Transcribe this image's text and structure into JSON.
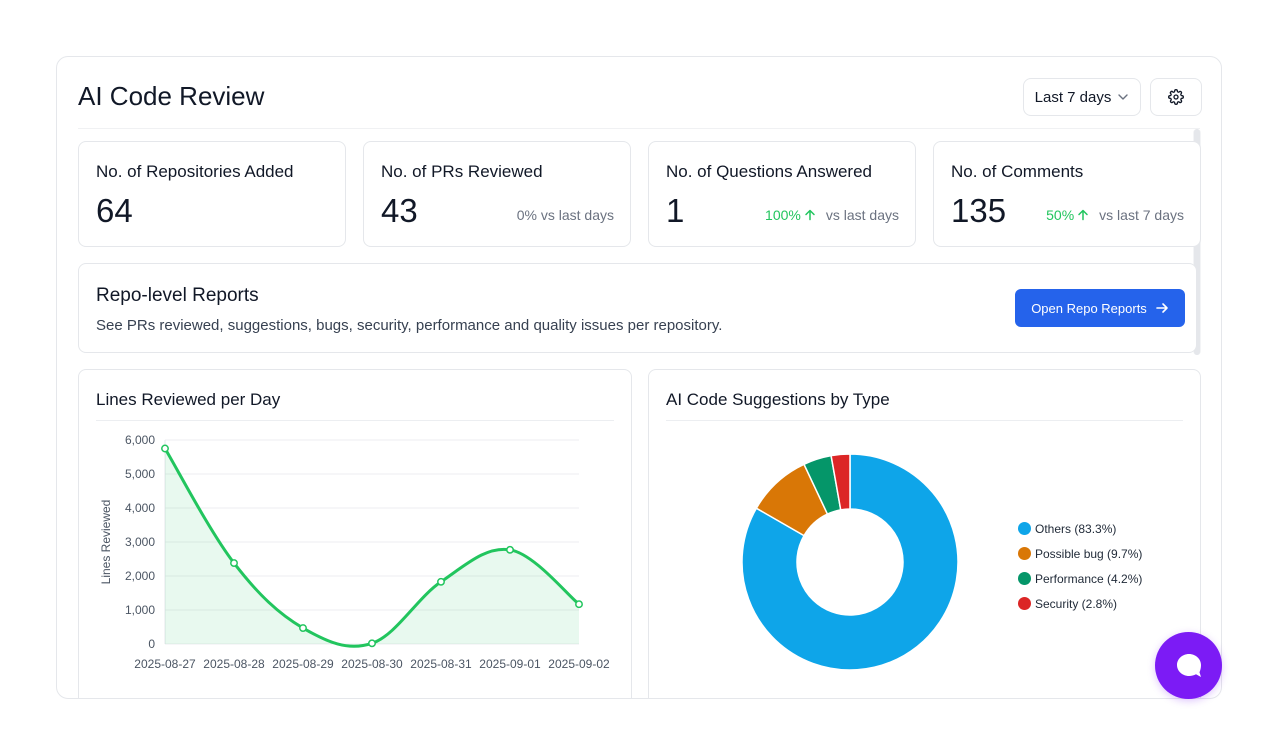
{
  "header": {
    "title": "AI Code Review",
    "range_label": "Last 7 days"
  },
  "stats": [
    {
      "label": "No. of Repositories Added",
      "value": "64",
      "delta_pct": "",
      "delta_text": ""
    },
    {
      "label": "No. of PRs Reviewed",
      "value": "43",
      "delta_pct": "",
      "delta_text": "0% vs last days"
    },
    {
      "label": "No. of Questions Answered",
      "value": "1",
      "delta_pct": "100%",
      "delta_text": "vs last days"
    },
    {
      "label": "No. of Comments",
      "value": "135",
      "delta_pct": "50%",
      "delta_text": "vs last 7 days"
    }
  ],
  "repo_reports": {
    "title": "Repo-level Reports",
    "description": "See PRs reviewed, suggestions, bugs, security, performance and quality issues per repository.",
    "button_label": "Open Repo Reports"
  },
  "colors": {
    "accent": "#2563eb",
    "positive": "#22c55e",
    "line": "#22c55e",
    "chat": "#7c1bf5"
  },
  "icons": {
    "dropdown": "chevron-down-icon",
    "settings": "gear-icon",
    "arrow": "arrow-right-icon",
    "up": "arrow-up-icon",
    "chat": "chat-bubble-icon"
  },
  "chart_data": [
    {
      "type": "area",
      "title": "Lines Reviewed per Day",
      "ylabel": "Lines Reviewed",
      "xlabel": "",
      "categories": [
        "2025-08-27",
        "2025-08-28",
        "2025-08-29",
        "2025-08-30",
        "2025-08-31",
        "2025-09-01",
        "2025-09-02"
      ],
      "values": [
        5750,
        2380,
        470,
        20,
        1830,
        2770,
        1170
      ],
      "ylim": [
        0,
        6000
      ],
      "yticks": [
        0,
        1000,
        2000,
        3000,
        4000,
        5000,
        6000
      ],
      "ytick_labels": [
        "0",
        "1,000",
        "2,000",
        "3,000",
        "4,000",
        "5,000",
        "6,000"
      ],
      "grid": true,
      "color": "#22c55e"
    },
    {
      "type": "pie",
      "title": "AI Code Suggestions by Type",
      "legend_position": "right",
      "slices": [
        {
          "label": "Others (83.3%)",
          "value": 83.3,
          "color": "#0ea5e9"
        },
        {
          "label": "Possible bug (9.7%)",
          "value": 9.7,
          "color": "#d97706"
        },
        {
          "label": "Performance (4.2%)",
          "value": 4.2,
          "color": "#059669"
        },
        {
          "label": "Security (2.8%)",
          "value": 2.8,
          "color": "#dc2626"
        }
      ]
    }
  ]
}
